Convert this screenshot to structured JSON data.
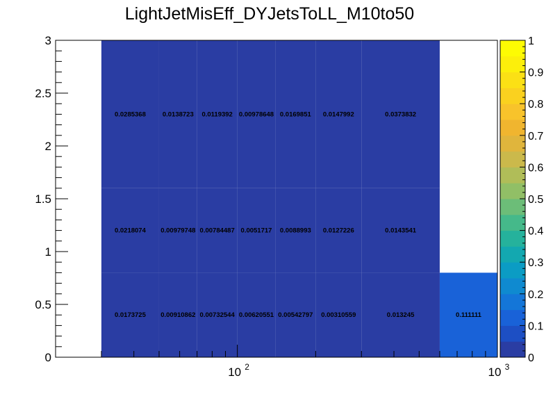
{
  "chart_data": {
    "type": "heatmap",
    "title": "LightJetMisEff_DYJetsToLL_M10to50",
    "xscale": "log",
    "xlim": [
      20,
      1000
    ],
    "ylim": [
      0,
      3
    ],
    "x_ticks": [
      {
        "value": 100,
        "base": "10",
        "exp": "2"
      },
      {
        "value": 1000,
        "base": "10",
        "exp": "3"
      }
    ],
    "y_ticks": [
      "0",
      "0.5",
      "1",
      "1.5",
      "2",
      "2.5",
      "3"
    ],
    "x_bin_edges": [
      30,
      40,
      50,
      60,
      70,
      80,
      100,
      120,
      160,
      210,
      260,
      320,
      400,
      500,
      600,
      800,
      1000
    ],
    "y_bin_edges": [
      0,
      0.8,
      1.6,
      3
    ],
    "cells": [
      {
        "x0": 30,
        "x1": 50,
        "y0": 0,
        "y1": 0.8,
        "value": 0.0173725,
        "label": "0.0173725"
      },
      {
        "x0": 50,
        "x1": 70,
        "y0": 0,
        "y1": 0.8,
        "value": 0.00910862,
        "label": "0.00910862"
      },
      {
        "x0": 70,
        "x1": 100,
        "y0": 0,
        "y1": 0.8,
        "value": 0.00732544,
        "label": "0.00732544"
      },
      {
        "x0": 100,
        "x1": 140,
        "y0": 0,
        "y1": 0.8,
        "value": 0.00620551,
        "label": "0.00620551"
      },
      {
        "x0": 140,
        "x1": 200,
        "y0": 0,
        "y1": 0.8,
        "value": 0.00542797,
        "label": "0.00542797"
      },
      {
        "x0": 200,
        "x1": 300,
        "y0": 0,
        "y1": 0.8,
        "value": 0.00310559,
        "label": "0.00310559"
      },
      {
        "x0": 300,
        "x1": 600,
        "y0": 0,
        "y1": 0.8,
        "value": 0.013245,
        "label": "0.013245"
      },
      {
        "x0": 600,
        "x1": 1000,
        "y0": 0,
        "y1": 0.8,
        "value": 0.111111,
        "label": "0.111111"
      },
      {
        "x0": 30,
        "x1": 50,
        "y0": 0.8,
        "y1": 1.6,
        "value": 0.0218074,
        "label": "0.0218074"
      },
      {
        "x0": 50,
        "x1": 70,
        "y0": 0.8,
        "y1": 1.6,
        "value": 0.00979748,
        "label": "0.00979748"
      },
      {
        "x0": 70,
        "x1": 100,
        "y0": 0.8,
        "y1": 1.6,
        "value": 0.00784487,
        "label": "0.00784487"
      },
      {
        "x0": 100,
        "x1": 140,
        "y0": 0.8,
        "y1": 1.6,
        "value": 0.0051717,
        "label": "0.0051717"
      },
      {
        "x0": 140,
        "x1": 200,
        "y0": 0.8,
        "y1": 1.6,
        "value": 0.0088993,
        "label": "0.0088993"
      },
      {
        "x0": 200,
        "x1": 300,
        "y0": 0.8,
        "y1": 1.6,
        "value": 0.0127226,
        "label": "0.0127226"
      },
      {
        "x0": 300,
        "x1": 600,
        "y0": 0.8,
        "y1": 1.6,
        "value": 0.0143541,
        "label": "0.0143541"
      },
      {
        "x0": 30,
        "x1": 50,
        "y0": 1.6,
        "y1": 3,
        "value": 0.0285368,
        "label": "0.0285368"
      },
      {
        "x0": 50,
        "x1": 70,
        "y0": 1.6,
        "y1": 3,
        "value": 0.0138723,
        "label": "0.0138723"
      },
      {
        "x0": 70,
        "x1": 100,
        "y0": 1.6,
        "y1": 3,
        "value": 0.0119392,
        "label": "0.0119392"
      },
      {
        "x0": 100,
        "x1": 140,
        "y0": 1.6,
        "y1": 3,
        "value": 0.00978648,
        "label": "0.00978648"
      },
      {
        "x0": 140,
        "x1": 200,
        "y0": 1.6,
        "y1": 3,
        "value": 0.0169851,
        "label": "0.0169851"
      },
      {
        "x0": 200,
        "x1": 300,
        "y0": 1.6,
        "y1": 3,
        "value": 0.0147992,
        "label": "0.0147992"
      },
      {
        "x0": 300,
        "x1": 600,
        "y0": 1.6,
        "y1": 3,
        "value": 0.0373832,
        "label": "0.0373832"
      }
    ],
    "colorbar": {
      "min": 0,
      "max": 1,
      "ticks": [
        "0",
        "0.1",
        "0.2",
        "0.3",
        "0.4",
        "0.5",
        "0.6",
        "0.7",
        "0.8",
        "0.9",
        "1"
      ],
      "colors": [
        "#2a3da3",
        "#1d4fc4",
        "#1962d8",
        "#1476d8",
        "#0f8ad0",
        "#0b9cc4",
        "#13a8b0",
        "#25b29c",
        "#45b98a",
        "#6cbd78",
        "#91bf66",
        "#b0bd58",
        "#cbb94b",
        "#e0b53c",
        "#f0b52f",
        "#f8c32b",
        "#fad11f",
        "#fbe015",
        "#fcef0b",
        "#fdfb03"
      ]
    }
  }
}
